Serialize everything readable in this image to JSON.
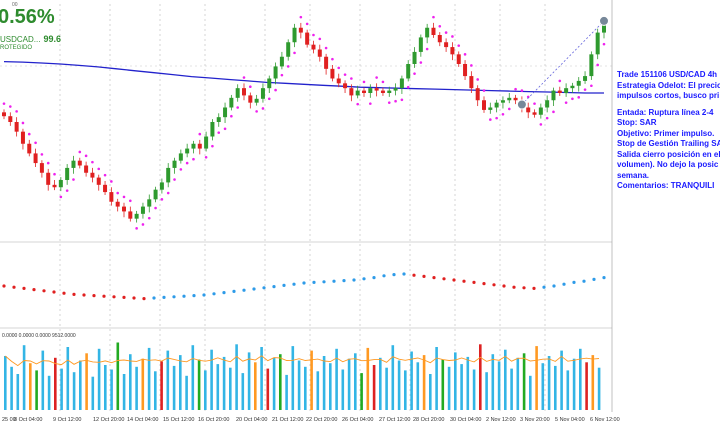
{
  "hud": {
    "top_label": "00",
    "percent": "0.56%",
    "symbol": "USDCAD...",
    "symbol_value": "99.6",
    "status": "ROTEGIDO"
  },
  "trade_note": {
    "lines": [
      "Trade 151106 USD/CAD 4h",
      "Estrategia Odelot: El precio",
      "impulsos cortos, busco pri",
      "",
      "Entada: Ruptura línea 2-4",
      "Stop: SAR",
      "Objetivo: Primer impulso.",
      "Stop de Gestión Trailing SA",
      "Salida cierro posición en el",
      "volumen). No dejo la posic",
      "semana.",
      "Comentarios: TRANQUILI"
    ]
  },
  "volume_header": "0.0000 0.0000 0.0000 9512.0000",
  "colors": {
    "bull": "#2e9a2e",
    "bear": "#e02020",
    "sar": "#ee22ee",
    "ma": "#2222cc",
    "osc_up": "#2e9be8",
    "osc_down": "#e02020",
    "vol_blue": "#33b5e5",
    "vol_orange": "#ff9922",
    "vol_green": "#22aa22",
    "vol_red": "#dd2222",
    "annotation": "#1a1aff"
  },
  "chart_data": {
    "type": "candlestick",
    "symbol": "USDCAD",
    "timeframe": "4h",
    "x_labels": [
      "25 00",
      "8 Oct 04:00",
      "9 Oct 12:00",
      "12 Oct 20:00",
      "14 Oct 04:00",
      "15 Oct 12:00",
      "16 Oct 20:00",
      "20 Oct 04:00",
      "21 Oct 12:00",
      "22 Oct 20:00",
      "26 Oct 04:00",
      "27 Oct 12:00",
      "28 Oct 20:00",
      "30 Oct 04:00",
      "2 Nov 12:00",
      "3 Nov 20:00",
      "5 Nov 04:00",
      "6 Nov 12:00"
    ],
    "close": [
      1.3092,
      1.308,
      1.306,
      1.3035,
      1.3015,
      1.2995,
      1.2975,
      1.295,
      1.2945,
      1.296,
      1.2985,
      1.3,
      1.299,
      1.2975,
      1.2965,
      1.295,
      1.2935,
      1.2915,
      1.2905,
      1.2895,
      1.288,
      1.289,
      1.2905,
      1.292,
      1.294,
      1.2955,
      1.2985,
      1.3,
      1.3015,
      1.3025,
      1.3035,
      1.3025,
      1.305,
      1.308,
      1.309,
      1.311,
      1.313,
      1.315,
      1.3135,
      1.312,
      1.3128,
      1.315,
      1.317,
      1.3195,
      1.3215,
      1.3245,
      1.3275,
      1.3265,
      1.324,
      1.323,
      1.3215,
      1.319,
      1.317,
      1.316,
      1.315,
      1.3135,
      1.3145,
      1.314,
      1.315,
      1.3145,
      1.314,
      1.3145,
      1.315,
      1.317,
      1.32,
      1.3225,
      1.3255,
      1.3275,
      1.326,
      1.3245,
      1.3235,
      1.322,
      1.32,
      1.3175,
      1.315,
      1.3125,
      1.3105,
      1.311,
      1.312,
      1.3125,
      1.313,
      1.3125,
      1.311,
      1.31,
      1.3095,
      1.311,
      1.3125,
      1.3145,
      1.314,
      1.315,
      1.3155,
      1.3165,
      1.3175,
      1.322,
      1.3265,
      1.3285
    ],
    "moving_average": [
      1.3205,
      1.3204,
      1.3202,
      1.32,
      1.3197,
      1.3194,
      1.319,
      1.3186,
      1.3182,
      1.3178,
      1.3174,
      1.3171,
      1.3168,
      1.3165,
      1.3162,
      1.316,
      1.3158,
      1.3156,
      1.3154,
      1.3152,
      1.3151,
      1.315,
      1.3149,
      1.3148,
      1.3147,
      1.3146,
      1.3145,
      1.3144,
      1.3143,
      1.3142,
      1.3141,
      1.314,
      1.314
    ],
    "oscillator": [
      0.1,
      0.08,
      0.06,
      0.04,
      0.02,
      0.0,
      -0.02,
      -0.04,
      -0.05,
      -0.06,
      -0.07,
      -0.08,
      -0.09,
      -0.1,
      -0.11,
      -0.1,
      -0.09,
      -0.08,
      -0.07,
      -0.06,
      -0.05,
      -0.03,
      -0.01,
      0.01,
      0.03,
      0.05,
      0.07,
      0.09,
      0.11,
      0.13,
      0.15,
      0.16,
      0.17,
      0.18,
      0.19,
      0.2,
      0.22,
      0.24,
      0.27,
      0.29,
      0.3,
      0.28,
      0.26,
      0.24,
      0.22,
      0.2,
      0.18,
      0.16,
      0.14,
      0.12,
      0.1,
      0.08,
      0.07,
      0.06,
      0.08,
      0.1,
      0.13,
      0.16,
      0.18,
      0.21,
      0.24
    ],
    "volume": [
      60,
      48,
      40,
      72,
      52,
      44,
      66,
      38,
      58,
      46,
      70,
      42,
      55,
      63,
      37,
      68,
      50,
      45,
      75,
      40,
      62,
      48,
      57,
      69,
      43,
      54,
      66,
      49,
      61,
      38,
      72,
      56,
      44,
      67,
      51,
      59,
      47,
      73,
      41,
      64,
      53,
      70,
      46,
      58,
      62,
      39,
      71,
      55,
      48,
      66,
      43,
      60,
      52,
      68,
      45,
      57,
      63,
      41,
      69,
      50,
      58,
      47,
      72,
      55,
      44,
      65,
      53,
      61,
      40,
      70,
      56,
      48,
      64,
      51,
      59,
      45,
      73,
      42,
      62,
      54,
      67,
      46,
      58,
      63,
      38,
      71,
      52,
      60,
      49,
      66,
      44,
      57,
      68,
      53,
      61,
      47
    ]
  }
}
